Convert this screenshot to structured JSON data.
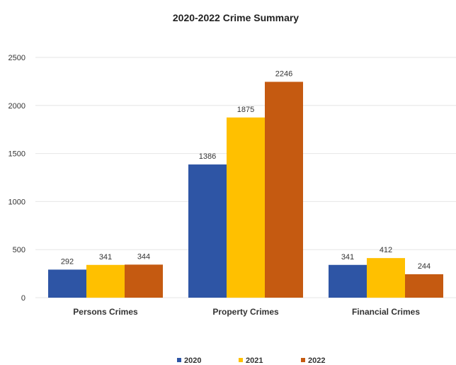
{
  "chart_data": {
    "type": "bar",
    "title": "2020-2022 Crime Summary",
    "categories": [
      "Persons Crimes",
      "Property Crimes",
      "Financial Crimes"
    ],
    "series": [
      {
        "name": "2020",
        "color": "#2e55a5",
        "values": [
          292,
          1386,
          341
        ]
      },
      {
        "name": "2021",
        "color": "#ffc000",
        "values": [
          341,
          1875,
          412
        ]
      },
      {
        "name": "2022",
        "color": "#c55a11",
        "values": [
          344,
          2246,
          244
        ]
      }
    ],
    "ylim": [
      0,
      2500
    ],
    "yticks": [
      "0",
      "500",
      "1000",
      "1500",
      "2000",
      "2500"
    ],
    "grid": true,
    "legend": "bottom",
    "data_labels": true
  }
}
